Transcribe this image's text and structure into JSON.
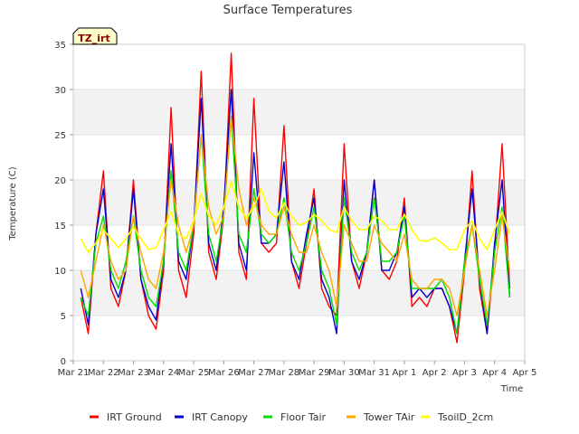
{
  "chart_data": {
    "type": "line",
    "title": "Surface Temperatures",
    "badge": "TZ_irt",
    "xlabel": "Time",
    "ylabel": "Temperature (C)",
    "ylim": [
      0,
      35
    ],
    "yticks": [
      0,
      5,
      10,
      15,
      20,
      25,
      30,
      35
    ],
    "xlim": [
      0,
      15
    ],
    "xticks": [
      0,
      1,
      2,
      3,
      4,
      5,
      6,
      7,
      8,
      9,
      10,
      11,
      12,
      13,
      14,
      15
    ],
    "xtick_labels": [
      "Mar 21",
      "Mar 22",
      "Mar 23",
      "Mar 24",
      "Mar 25",
      "Mar 26",
      "Mar 27",
      "Mar 28",
      "Mar 29",
      "Mar 30",
      "Mar 31",
      "Apr 1",
      "Apr 2",
      "Apr 3",
      "Apr 4",
      "Apr 5"
    ],
    "grid": "horizontal bands",
    "legend_position": "bottom",
    "series": [
      {
        "name": "IRT Ground",
        "color": "#ff0000",
        "x": [
          0.25,
          0.5,
          0.75,
          1.0,
          1.25,
          1.5,
          1.75,
          2.0,
          2.25,
          2.5,
          2.75,
          3.0,
          3.25,
          3.5,
          3.75,
          4.0,
          4.25,
          4.5,
          4.75,
          5.0,
          5.25,
          5.5,
          5.75,
          6.0,
          6.25,
          6.5,
          6.75,
          7.0,
          7.25,
          7.5,
          7.75,
          8.0,
          8.25,
          8.5,
          8.75,
          9.0,
          9.25,
          9.5,
          9.75,
          10.0,
          10.25,
          10.5,
          10.75,
          11.0,
          11.25,
          11.5,
          11.75,
          12.0,
          12.25,
          12.5,
          12.75,
          13.0,
          13.25,
          13.5,
          13.75,
          14.0,
          14.25,
          14.5
        ],
        "y": [
          7,
          3,
          14,
          21,
          8,
          6,
          10,
          20,
          9,
          5,
          3.5,
          10,
          28,
          10,
          7,
          14,
          32,
          12,
          9,
          16,
          34,
          12,
          9,
          29,
          13,
          12,
          13,
          26,
          11,
          8,
          13,
          19,
          8,
          6,
          5,
          24,
          11,
          8,
          12,
          20,
          10,
          9,
          11,
          18,
          6,
          7,
          6,
          8,
          8,
          6,
          2,
          10,
          21,
          8,
          3,
          12,
          24,
          8
        ]
      },
      {
        "name": "IRT Canopy",
        "color": "#0000cc",
        "x": [
          0.25,
          0.5,
          0.75,
          1.0,
          1.25,
          1.5,
          1.75,
          2.0,
          2.25,
          2.5,
          2.75,
          3.0,
          3.25,
          3.5,
          3.75,
          4.0,
          4.25,
          4.5,
          4.75,
          5.0,
          5.25,
          5.5,
          5.75,
          6.0,
          6.25,
          6.5,
          6.75,
          7.0,
          7.25,
          7.5,
          7.75,
          8.0,
          8.25,
          8.5,
          8.75,
          9.0,
          9.25,
          9.5,
          9.75,
          10.0,
          10.25,
          10.5,
          10.75,
          11.0,
          11.25,
          11.5,
          11.75,
          12.0,
          12.25,
          12.5,
          12.75,
          13.0,
          13.25,
          13.5,
          13.75,
          14.0,
          14.25,
          14.5
        ],
        "y": [
          8,
          4,
          14,
          19,
          9,
          7,
          10,
          19,
          9,
          6,
          4.5,
          11,
          24,
          11,
          9,
          15,
          29,
          13,
          10,
          17,
          30,
          13,
          10,
          23,
          13,
          13,
          14,
          22,
          11,
          9,
          14,
          18,
          9,
          7,
          3,
          20,
          11,
          9,
          12,
          20,
          10,
          10,
          12,
          17,
          7,
          8,
          7,
          8,
          8,
          6,
          3,
          11,
          19,
          9,
          3,
          13,
          20,
          7
        ]
      },
      {
        "name": "Floor Tair",
        "color": "#00dd00",
        "x": [
          0.25,
          0.5,
          0.75,
          1.0,
          1.25,
          1.5,
          1.75,
          2.0,
          2.25,
          2.5,
          2.75,
          3.0,
          3.25,
          3.5,
          3.75,
          4.0,
          4.25,
          4.5,
          4.75,
          5.0,
          5.25,
          5.5,
          5.75,
          6.0,
          6.25,
          6.5,
          6.75,
          7.0,
          7.25,
          7.5,
          7.75,
          8.0,
          8.25,
          8.5,
          8.75,
          9.0,
          9.25,
          9.5,
          9.75,
          10.0,
          10.25,
          10.5,
          10.75,
          11.0,
          11.25,
          11.5,
          11.75,
          12.0,
          12.25,
          12.5,
          12.75,
          13.0,
          13.25,
          13.5,
          13.75,
          14.0,
          14.25,
          14.5
        ],
        "y": [
          7,
          5,
          13,
          16,
          10,
          8,
          11,
          16,
          10,
          7,
          6,
          11,
          21,
          12,
          10,
          15,
          25,
          14,
          11,
          16,
          27,
          14,
          12,
          19,
          14,
          13,
          14,
          18,
          12,
          10,
          13,
          17,
          10,
          8,
          4,
          18,
          12,
          10,
          12,
          18,
          11,
          11,
          12,
          16,
          8,
          8,
          8,
          8,
          9,
          7,
          3,
          11,
          15,
          9,
          4,
          12,
          17,
          7
        ]
      },
      {
        "name": "Tower TAir",
        "color": "#ffa500",
        "x": [
          0.25,
          0.5,
          0.75,
          1.0,
          1.25,
          1.5,
          1.75,
          2.0,
          2.25,
          2.5,
          2.75,
          3.0,
          3.25,
          3.5,
          3.75,
          4.0,
          4.25,
          4.5,
          4.75,
          5.0,
          5.25,
          5.5,
          5.75,
          6.0,
          6.25,
          6.5,
          6.75,
          7.0,
          7.25,
          7.5,
          7.75,
          8.0,
          8.25,
          8.5,
          8.75,
          9.0,
          9.25,
          9.5,
          9.75,
          10.0,
          10.25,
          10.5,
          10.75,
          11.0,
          11.25,
          11.5,
          11.75,
          12.0,
          12.25,
          12.5,
          12.75,
          13.0,
          13.25,
          13.5,
          13.75,
          14.0,
          14.25,
          14.5
        ],
        "y": [
          10,
          7,
          11,
          15,
          11,
          9,
          10,
          16,
          12,
          9,
          8,
          12,
          20,
          15,
          12,
          15,
          25,
          17,
          14,
          16,
          27,
          19,
          15,
          18,
          15,
          14,
          14,
          17,
          14,
          12,
          12,
          15,
          12,
          10,
          6,
          15,
          13,
          11,
          11,
          15,
          13,
          12,
          11,
          14,
          9,
          8,
          8,
          9,
          9,
          8,
          5,
          10,
          15,
          10,
          5,
          10,
          16,
          10
        ]
      },
      {
        "name": "TsoilD_2cm",
        "color": "#ffff00",
        "x": [
          0.25,
          0.5,
          0.75,
          1.0,
          1.25,
          1.5,
          1.75,
          2.0,
          2.25,
          2.5,
          2.75,
          3.0,
          3.25,
          3.5,
          3.75,
          4.0,
          4.25,
          4.5,
          4.75,
          5.0,
          5.25,
          5.5,
          5.75,
          6.0,
          6.25,
          6.5,
          6.75,
          7.0,
          7.25,
          7.5,
          7.75,
          8.0,
          8.25,
          8.5,
          8.75,
          9.0,
          9.25,
          9.5,
          9.75,
          10.0,
          10.25,
          10.5,
          10.75,
          11.0,
          11.25,
          11.5,
          11.75,
          12.0,
          12.25,
          12.5,
          12.75,
          13.0,
          13.25,
          13.5,
          13.75,
          14.0,
          14.25,
          14.5
        ],
        "y": [
          13.5,
          12,
          13,
          14.5,
          13.5,
          12.5,
          13.5,
          14.8,
          13.5,
          12.3,
          12.5,
          14.5,
          16.5,
          14,
          13.5,
          15.5,
          18.5,
          16,
          15,
          17,
          19.8,
          17,
          15.8,
          17,
          19,
          16.5,
          15.8,
          17.5,
          16,
          15,
          15.3,
          16.2,
          15.5,
          14.5,
          14.2,
          17,
          15.5,
          14.5,
          14.5,
          16,
          15.5,
          14.5,
          14.5,
          16.2,
          14.5,
          13.3,
          13.2,
          13.6,
          13,
          12.3,
          12.3,
          14.5,
          15.5,
          13.5,
          12.3,
          14.5,
          16.5,
          14
        ]
      }
    ]
  }
}
